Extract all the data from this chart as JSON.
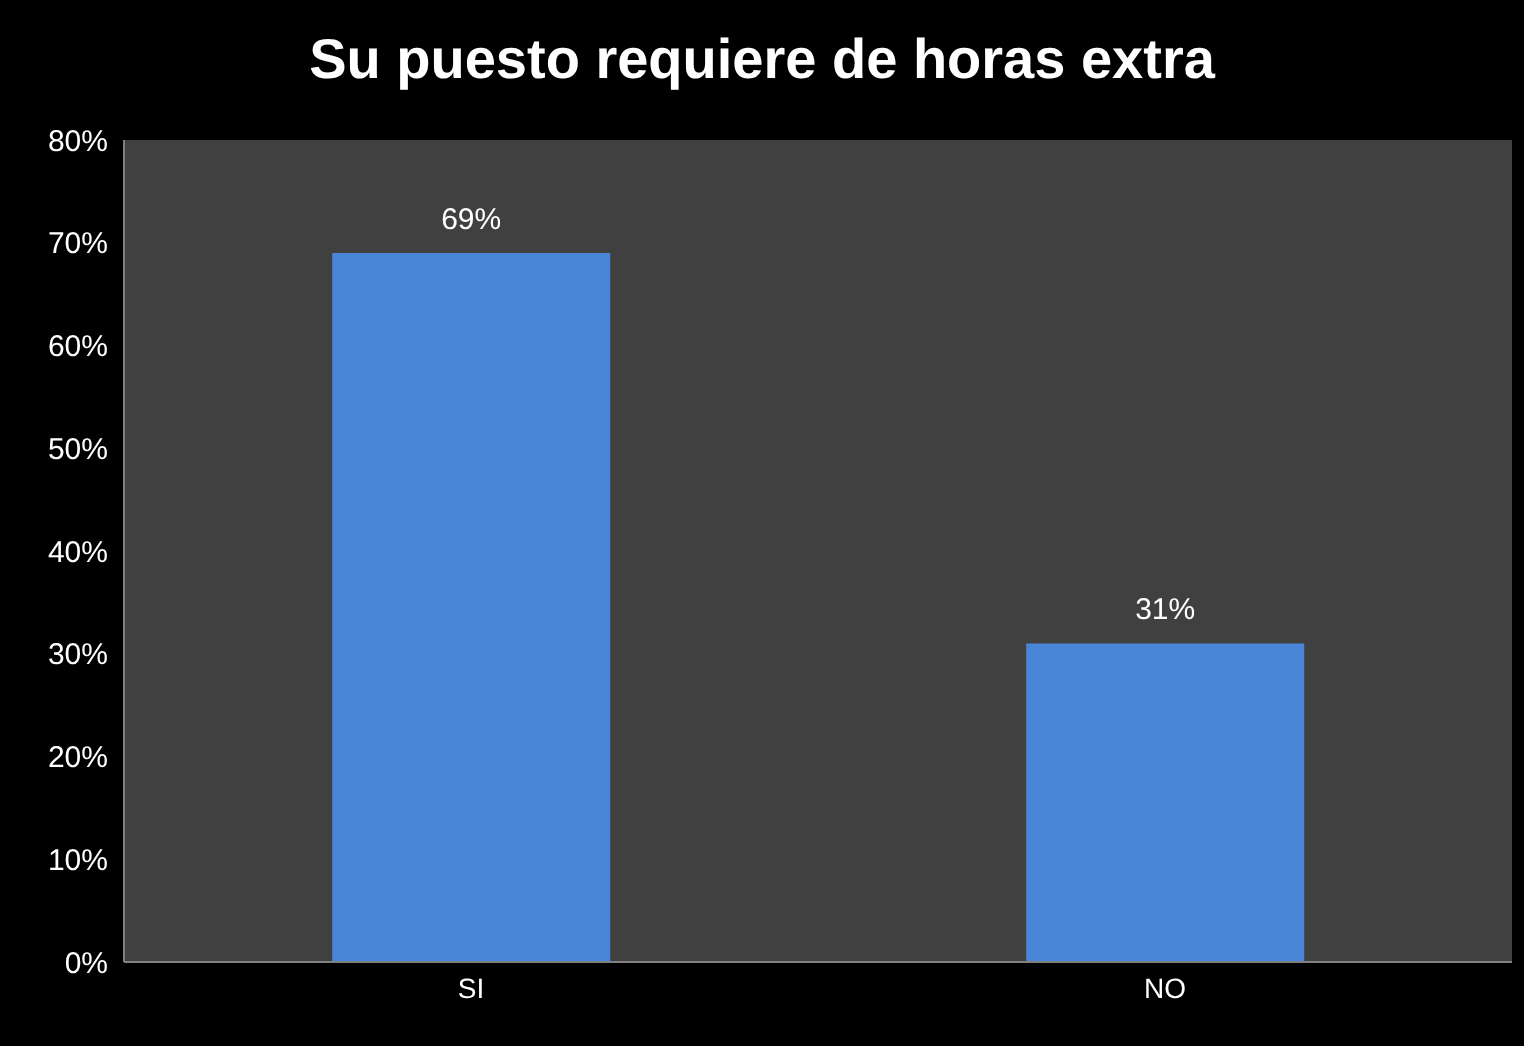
{
  "chart_data": {
    "type": "bar",
    "title": "Su puesto requiere de horas extra",
    "categories": [
      "SI",
      "NO"
    ],
    "values": [
      69,
      31
    ],
    "value_labels": [
      "69%",
      "31%"
    ],
    "color": "#4a86d8",
    "ylim": [
      0,
      80
    ],
    "yticks": [
      {
        "value": 0,
        "label": "0%"
      },
      {
        "value": 10,
        "label": "10%"
      },
      {
        "value": 20,
        "label": "20%"
      },
      {
        "value": 30,
        "label": "30%"
      },
      {
        "value": 40,
        "label": "40%"
      },
      {
        "value": 50,
        "label": "50%"
      },
      {
        "value": 60,
        "label": "60%"
      },
      {
        "value": 70,
        "label": "70%"
      },
      {
        "value": 80,
        "label": "80%"
      }
    ]
  }
}
